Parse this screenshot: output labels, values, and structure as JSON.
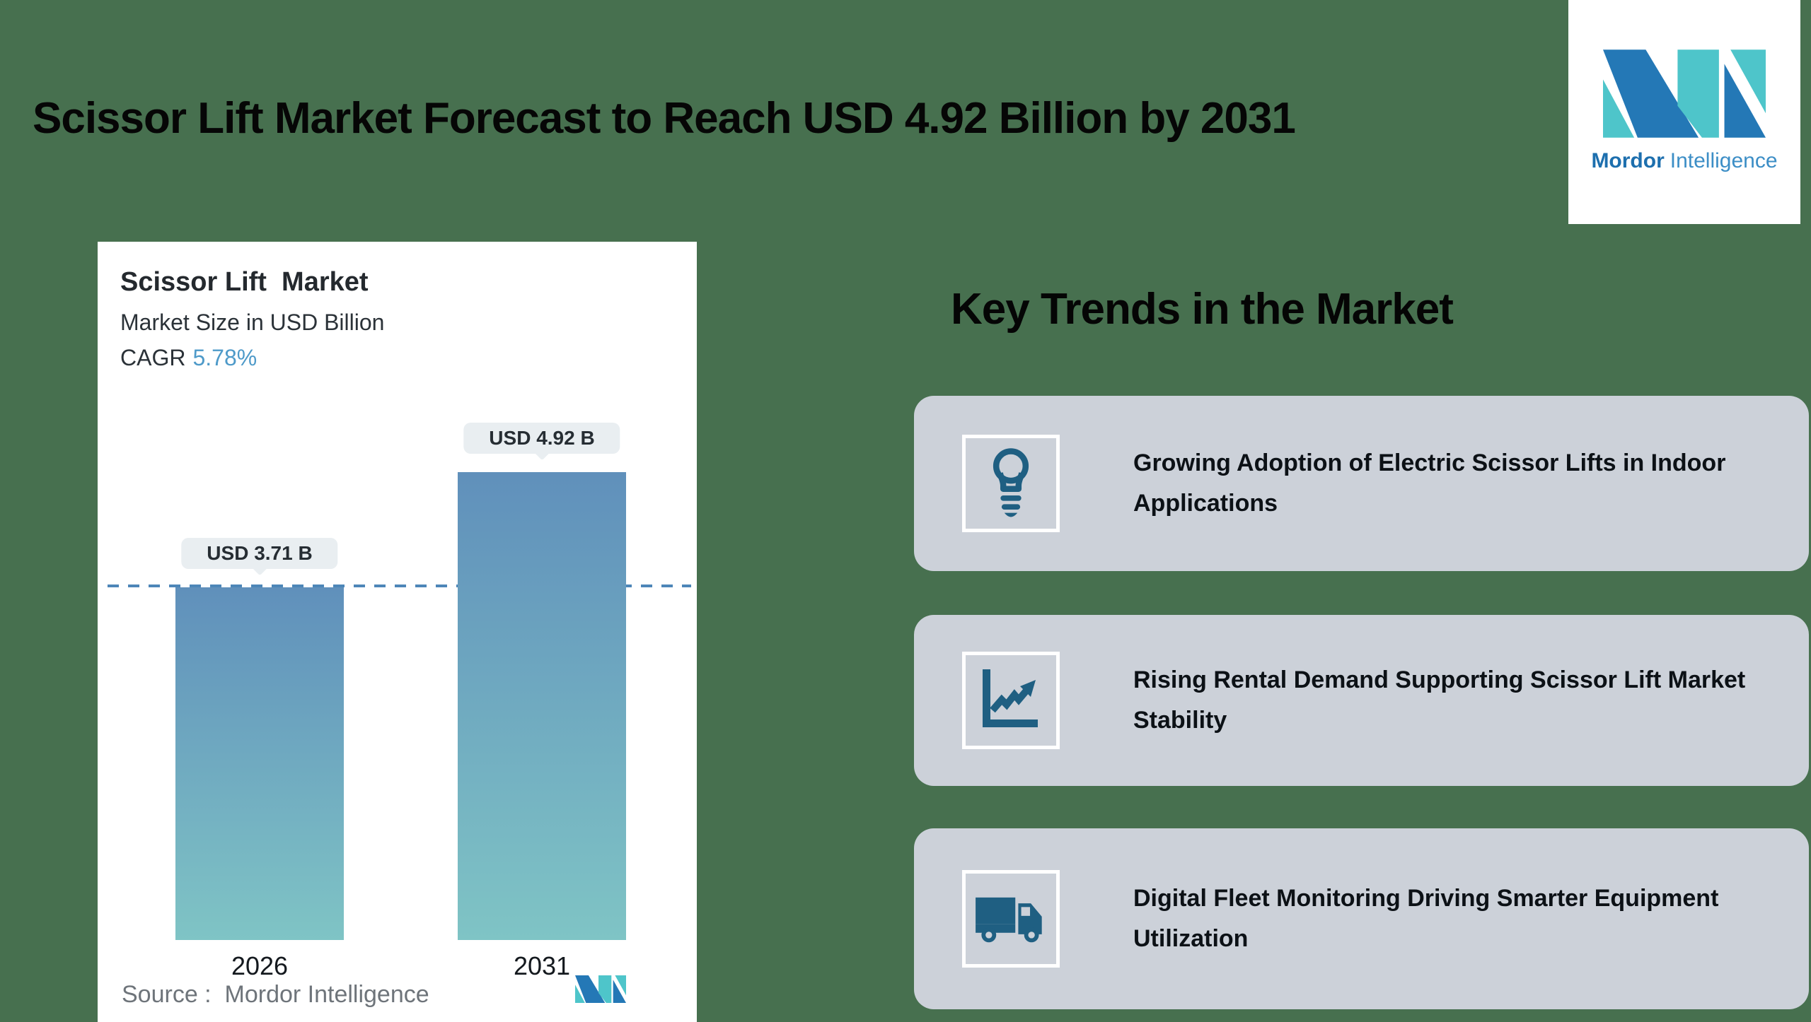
{
  "canvas": {
    "background": "#47704f"
  },
  "header": {
    "title": "Scissor Lift Market Forecast to Reach USD 4.92 Billion by 2031"
  },
  "brand": {
    "name_bold": "Mordor",
    "name_regular": "Intelligence",
    "mark_blue": "#2478B6",
    "mark_teal": "#4EC5CA"
  },
  "chart_card": {
    "title": "Scissor Lift  Market",
    "subtitle": "Market Size in USD Billion",
    "cagr_label": "CAGR",
    "cagr_value": "5.78%",
    "cagr_value_color": "#4E9AC9",
    "source_text": "Source :  Mordor Intelligence"
  },
  "chart_data": {
    "type": "bar",
    "title": "Scissor Lift  Market",
    "subtitle": "Market Size in USD Billion",
    "unit": "USD Billion",
    "cagr_percent": 5.78,
    "categories": [
      "2026",
      "2031"
    ],
    "values": [
      3.71,
      4.92
    ],
    "value_labels": [
      "USD 3.71 B",
      "USD 4.92 B"
    ],
    "ylim": [
      0,
      5.2
    ],
    "grid": "off",
    "legend": "none",
    "reference_line": {
      "at_value": 3.71,
      "style": "dashed",
      "color": "#4d86b8"
    },
    "bar_gradient_top": "#6090BB",
    "bar_gradient_bottom": "#7FC4C5",
    "label_pill_color": "#E9EEF1",
    "source": "Mordor Intelligence"
  },
  "key_trends": {
    "heading": "Key Trends in the Market",
    "card_color": "#CCD1D9",
    "icon_color": "#1F5F82",
    "items": [
      {
        "icon": "lightbulb-icon",
        "text": "Growing Adoption of Electric Scissor Lifts in Indoor Applications"
      },
      {
        "icon": "line-chart-icon",
        "text": "Rising Rental Demand Supporting Scissor Lift Market Stability"
      },
      {
        "icon": "truck-icon",
        "text": "Digital Fleet Monitoring Driving Smarter Equipment Utilization"
      }
    ]
  }
}
